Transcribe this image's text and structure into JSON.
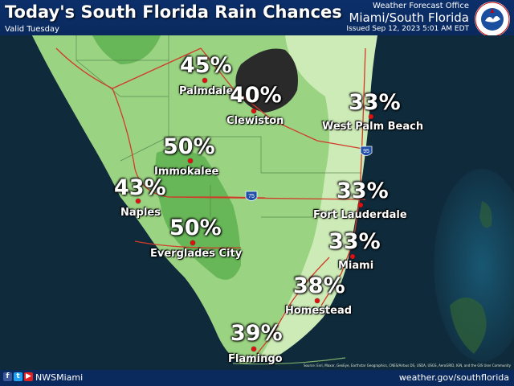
{
  "header": {
    "title": "Today's South Florida Rain Chances",
    "subtitle": "Valid Tuesday",
    "office_line1": "Weather Forecast Office",
    "office_line2": "Miami/South Florida",
    "issued": "Issued Sep 12, 2023 5:01 AM EDT",
    "logo_text": "NATIONAL WEATHER SERVICE"
  },
  "map": {
    "cities": [
      {
        "name": "Palmdale",
        "chance": "45%"
      },
      {
        "name": "Clewiston",
        "chance": "40%"
      },
      {
        "name": "West Palm Beach",
        "chance": "33%"
      },
      {
        "name": "Immokalee",
        "chance": "50%"
      },
      {
        "name": "Naples",
        "chance": "43%"
      },
      {
        "name": "Fort Lauderdale",
        "chance": "33%"
      },
      {
        "name": "Everglades City",
        "chance": "50%"
      },
      {
        "name": "Miami",
        "chance": "33%"
      },
      {
        "name": "Homestead",
        "chance": "38%"
      },
      {
        "name": "Flamingo",
        "chance": "39%"
      }
    ],
    "highway_shields": [
      "75",
      "95"
    ],
    "attribution": "Source: Esri, Maxar, GeoEye, Earthstar Geographics, CNES/Airbus DS, USDA, USGS, AeroGRID, IGN, and the GIS User Community",
    "colors": {
      "water": "#0f2a3a",
      "chance_30s": "#cdebb6",
      "chance_40s": "#9ad381",
      "chance_50s": "#67b657",
      "lake": "#2a2a2a",
      "roads": "#d23a2a",
      "dots": "#dd1111"
    }
  },
  "footer": {
    "social_handle": "NWSMiami",
    "social_icons": [
      "facebook-icon",
      "twitter-icon",
      "youtube-icon"
    ],
    "url": "weather.gov/southflorida"
  }
}
